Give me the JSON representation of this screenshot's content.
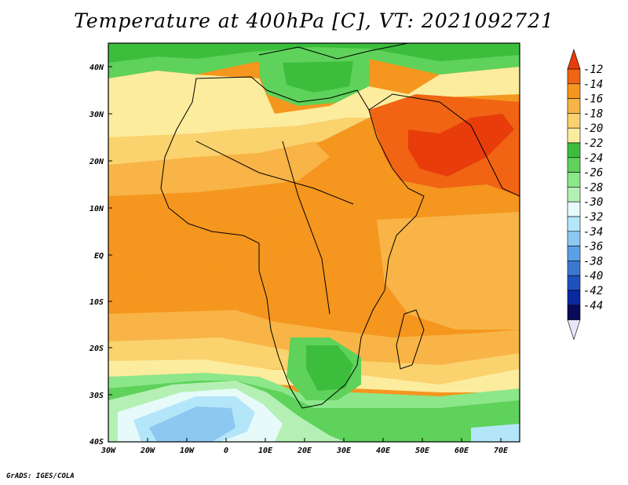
{
  "title": "Temperature at 400hPa [C], VT: 2021092721",
  "credit": "GrADS: IGES/COLA",
  "map": {
    "lat_labels": [
      "40N",
      "30N",
      "20N",
      "10N",
      "EQ",
      "10S",
      "20S",
      "30S",
      "40S"
    ],
    "lon_labels": [
      "30W",
      "20W",
      "10W",
      "0",
      "10E",
      "20E",
      "30E",
      "40E",
      "50E",
      "60E",
      "70E"
    ],
    "lat_range": [
      -40,
      45
    ],
    "lon_range": [
      -30,
      75
    ]
  },
  "colorbar": {
    "labels": [
      "-12",
      "-14",
      "-16",
      "-18",
      "-20",
      "-22",
      "-24",
      "-26",
      "-28",
      "-30",
      "-32",
      "-34",
      "-36",
      "-38",
      "-40",
      "-42",
      "-44"
    ],
    "colors": [
      "#e83c0a",
      "#f06414",
      "#f5961e",
      "#f8b446",
      "#fad26e",
      "#fcec9e",
      "#3cbe3c",
      "#5ed25a",
      "#8ce68a",
      "#b4f0b4",
      "#e6fafa",
      "#b4e6fa",
      "#8cc8f0",
      "#5aa0e6",
      "#3c78d2",
      "#1e50be",
      "#0a28a0",
      "#0a0a5a",
      "#e6e6fa"
    ]
  }
}
